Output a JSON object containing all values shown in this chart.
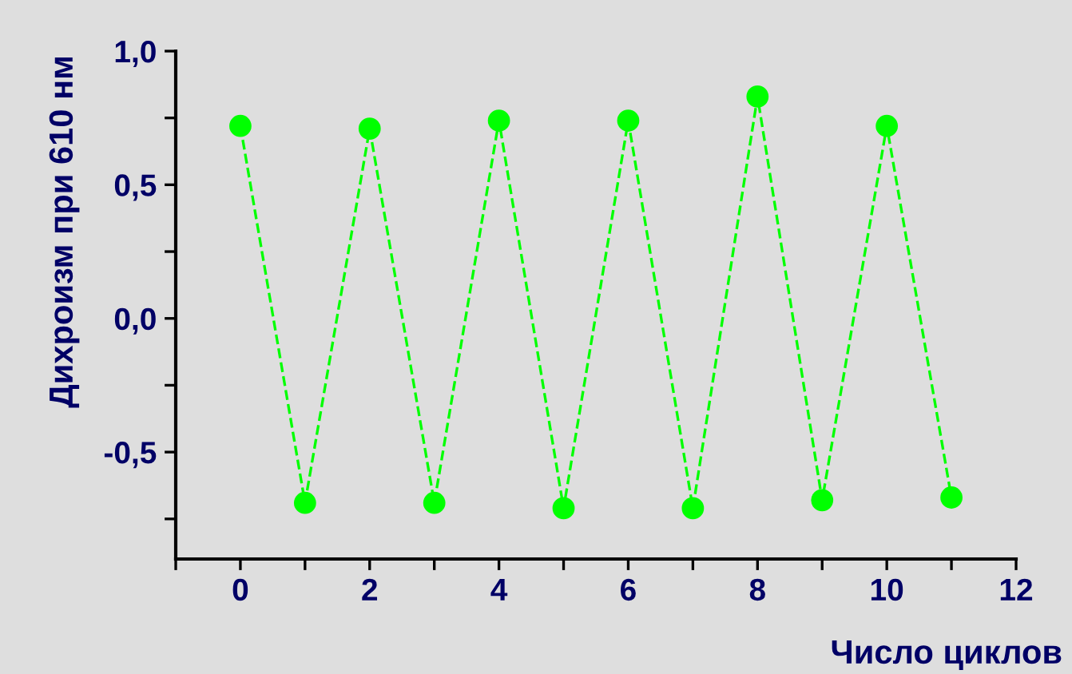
{
  "chart_data": {
    "type": "line",
    "xlabel": "Число циклов",
    "ylabel": "Дихроизм при 610 нм",
    "x": [
      0,
      1,
      2,
      3,
      4,
      5,
      6,
      7,
      8,
      9,
      10,
      11
    ],
    "series": [
      {
        "color": "#00ff00",
        "values": [
          0.72,
          -0.69,
          0.71,
          -0.69,
          0.74,
          -0.71,
          0.74,
          -0.71,
          0.83,
          -0.68,
          0.72,
          -0.67
        ]
      }
    ],
    "marker": "circle",
    "line_style": "dashed",
    "xlim": [
      -1,
      12
    ],
    "ylim": [
      -0.9,
      1.0
    ],
    "xticks": [
      {
        "value": -1,
        "label": null
      },
      0,
      {
        "value": 1,
        "label": null
      },
      2,
      {
        "value": 3,
        "label": null
      },
      4,
      {
        "value": 5,
        "label": null
      },
      6,
      {
        "value": 7,
        "label": null
      },
      8,
      {
        "value": 9,
        "label": null
      },
      10,
      {
        "value": 11,
        "label": null
      },
      12
    ],
    "yticks": [
      {
        "value": -0.75,
        "label": null
      },
      {
        "value": -0.5,
        "label": "-0,5"
      },
      {
        "value": -0.25,
        "label": null
      },
      {
        "value": 0,
        "label": "0,0"
      },
      {
        "value": 0.25,
        "label": null
      },
      {
        "value": 0.5,
        "label": "0,5"
      },
      {
        "value": 0.75,
        "label": null
      },
      {
        "value": 1.0,
        "label": "1,0"
      }
    ]
  }
}
